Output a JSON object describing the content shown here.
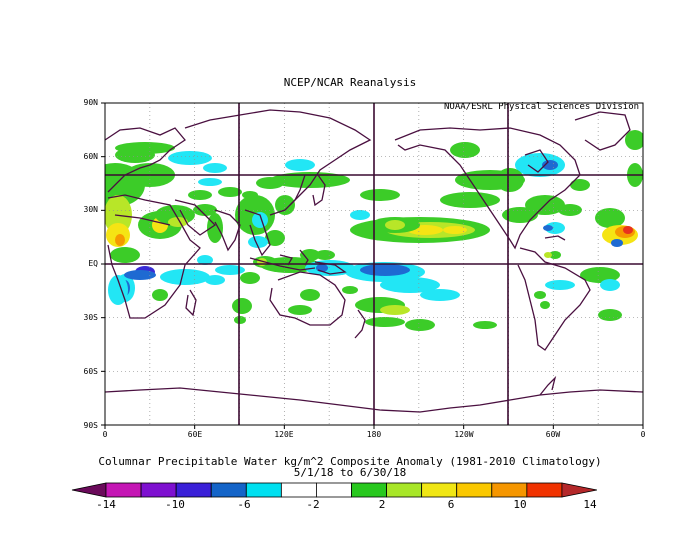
{
  "map": {
    "title": "NCEP/NCAR Reanalysis",
    "credit": "NOAA/ESRL Physical Sciences Division",
    "caption_line1": "Columnar Precipitable Water kg/m^2 Composite Anomaly (1981-2010 Climatology)",
    "caption_line2": "5/1/18  to 6/30/18",
    "lat_labels": [
      "90N",
      "60N",
      "30N",
      "EQ",
      "30S",
      "60S",
      "90S"
    ],
    "lon_labels": [
      "0",
      "60E",
      "120E",
      "180",
      "120W",
      "60W",
      "0"
    ],
    "colorbar": {
      "tick_labels": [
        "-14",
        "-10",
        "-6",
        "-2",
        "2",
        "6",
        "10",
        "14"
      ],
      "colors": [
        "#6a0a5a",
        "#c416b4",
        "#7e10d0",
        "#3a20d8",
        "#1464c8",
        "#00e0f0",
        "#ffffff",
        "#ffffff",
        "#28c81e",
        "#a8e628",
        "#f0e614",
        "#fac800",
        "#f59600",
        "#f03200",
        "#b4282a"
      ]
    },
    "colors": {
      "coast": "#4a1040",
      "green": "#3ccc28",
      "yellow_green": "#b8e628",
      "yellow": "#f5e414",
      "orange": "#f59a00",
      "red": "#e8321e",
      "cyan": "#22e6f5",
      "blue": "#1e6ad2",
      "indigo": "#3a2ad6"
    }
  }
}
